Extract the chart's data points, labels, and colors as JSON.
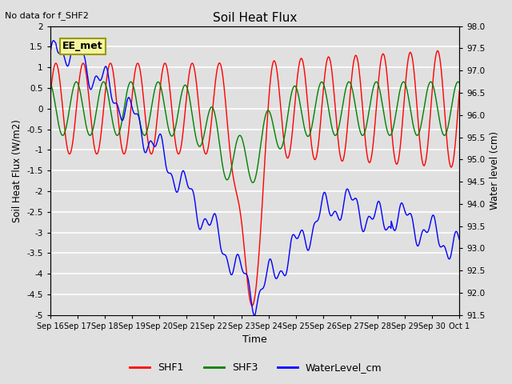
{
  "title": "Soil Heat Flux",
  "subtitle": "No data for f_SHF2",
  "ylabel_left": "Soil Heat Flux (W/m2)",
  "ylabel_right": "Water level (cm)",
  "xlabel": "Time",
  "ylim_left": [
    -5.0,
    2.0
  ],
  "ylim_right": [
    91.5,
    98.0
  ],
  "bg_color": "#e0e0e0",
  "plot_bg_color": "#e0e0e0",
  "grid_color": "white",
  "line_colors": {
    "SHF1": "red",
    "SHF3": "green",
    "WaterLevel_cm": "blue"
  },
  "annotation_text": "EE_met",
  "annotation_box_color": "#f5f5a0",
  "annotation_box_edge": "#999900"
}
